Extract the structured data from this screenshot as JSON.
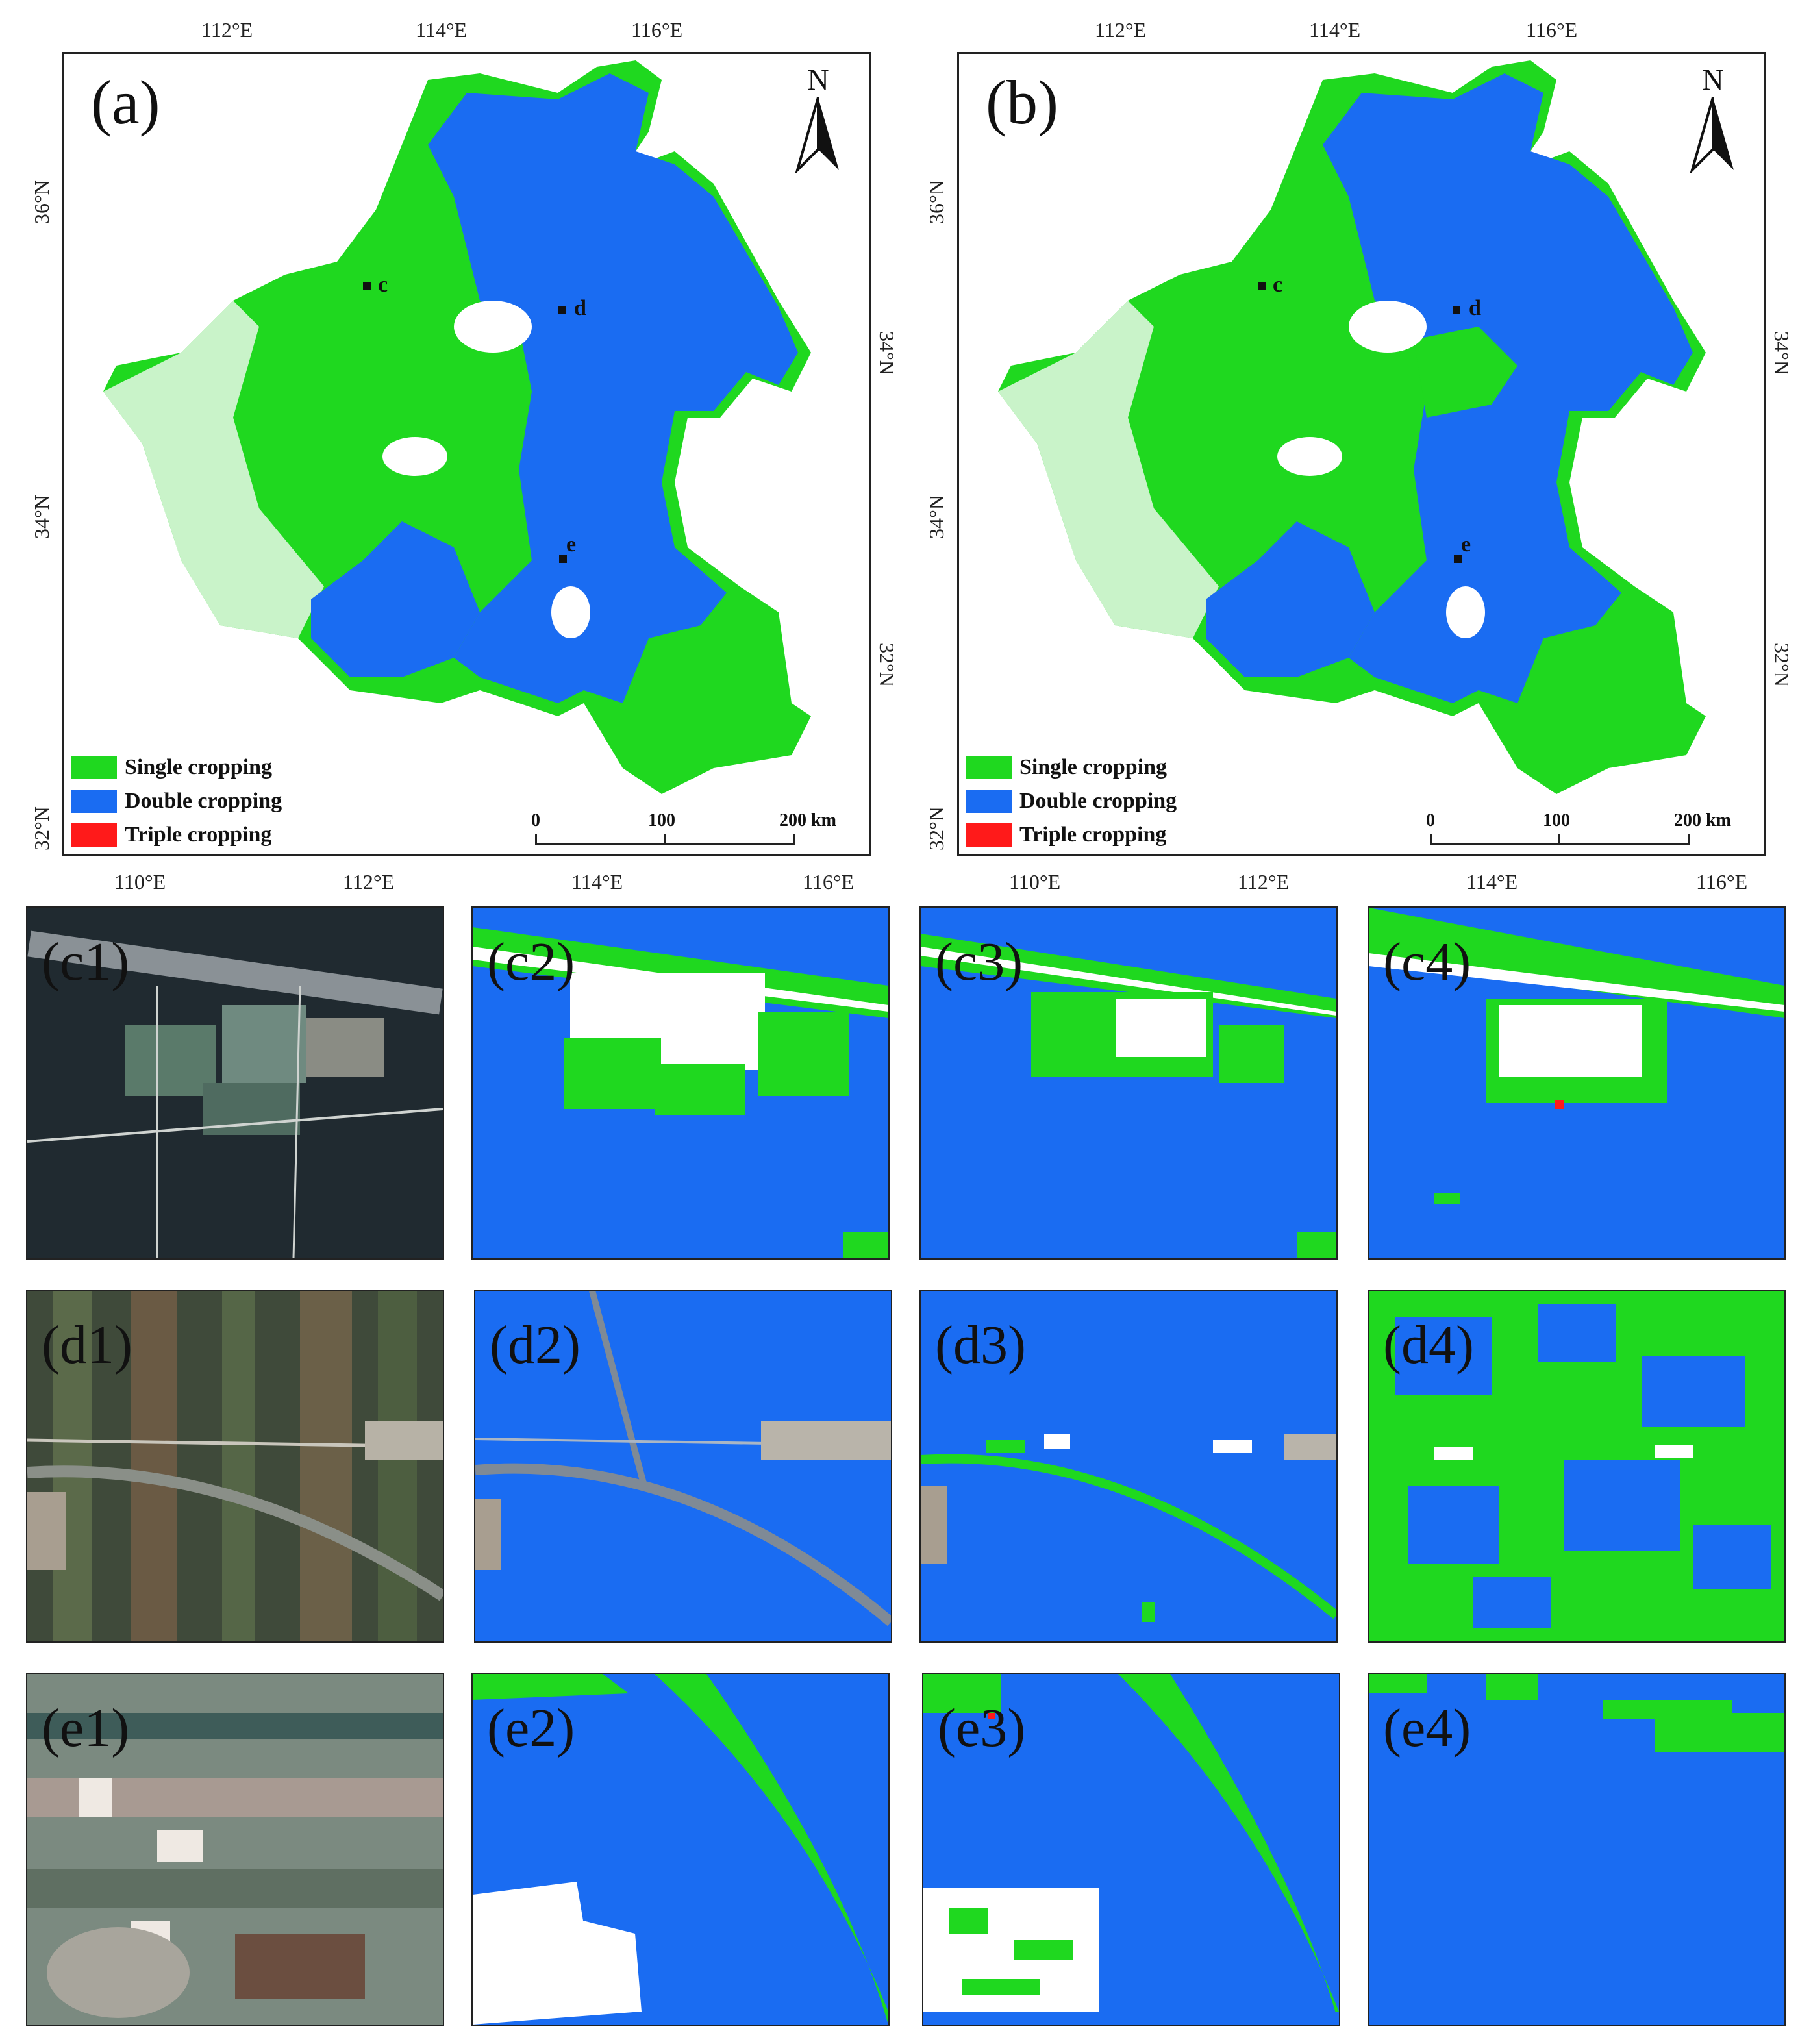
{
  "colors": {
    "single": "#1fd81f",
    "double": "#1a6cf2",
    "triple": "#ff1a1a",
    "frame": "#222222"
  },
  "maps": [
    {
      "letter": "(a)",
      "top_ticks": [
        "112°E",
        "114°E",
        "116°E"
      ],
      "bottom_ticks": [
        "110°E",
        "112°E",
        "114°E",
        "116°E"
      ],
      "left_ticks": [
        "36°N",
        "34°N",
        "32°N"
      ],
      "right_ticks": [
        "34°N",
        "32°N"
      ],
      "north": "N",
      "sites": [
        "c",
        "d",
        "e"
      ],
      "legend": [
        "Single cropping",
        "Double cropping",
        "Triple cropping"
      ],
      "scale": [
        "0",
        "100",
        "200 km"
      ]
    },
    {
      "letter": "(b)",
      "top_ticks": [
        "112°E",
        "114°E",
        "116°E"
      ],
      "bottom_ticks": [
        "110°E",
        "112°E",
        "114°E",
        "116°E"
      ],
      "left_ticks": [
        "36°N",
        "34°N",
        "32°N"
      ],
      "right_ticks": [
        "34°N",
        "32°N"
      ],
      "north": "N",
      "sites": [
        "c",
        "d",
        "e"
      ],
      "legend": [
        "Single cropping",
        "Double cropping",
        "Triple cropping"
      ],
      "scale": [
        "0",
        "100",
        "200 km"
      ]
    }
  ],
  "tiles": [
    {
      "label": "(c1)",
      "kind": "satellite"
    },
    {
      "label": "(c2)",
      "kind": "classified"
    },
    {
      "label": "(c3)",
      "kind": "classified"
    },
    {
      "label": "(c4)",
      "kind": "classified"
    },
    {
      "label": "(d1)",
      "kind": "satellite"
    },
    {
      "label": "(d2)",
      "kind": "classified"
    },
    {
      "label": "(d3)",
      "kind": "classified"
    },
    {
      "label": "(d4)",
      "kind": "classified"
    },
    {
      "label": "(e1)",
      "kind": "satellite"
    },
    {
      "label": "(e2)",
      "kind": "classified"
    },
    {
      "label": "(e3)",
      "kind": "classified"
    },
    {
      "label": "(e4)",
      "kind": "classified"
    }
  ]
}
